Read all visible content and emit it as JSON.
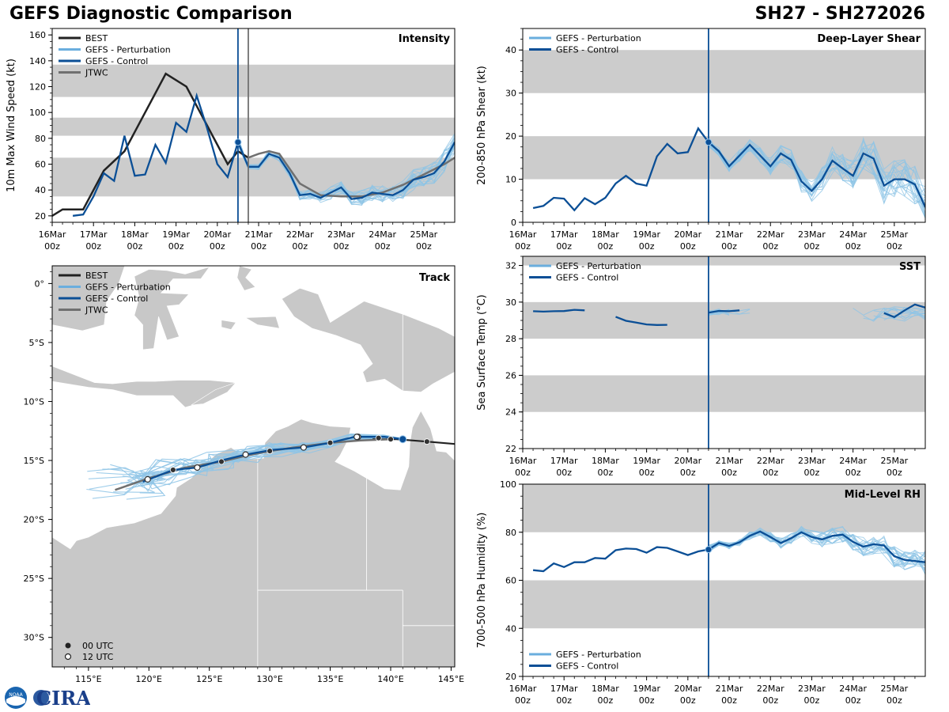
{
  "header": {
    "title": "GEFS Diagnostic Comparison",
    "storm_id": "SH27 - SH272026"
  },
  "colors": {
    "best": "#222222",
    "perturbation": "#8ec4e6",
    "perturbation_legend": "#6aaede",
    "control": "#0b4f96",
    "jtwc": "#707070",
    "band": "#cccccc",
    "land": "#c8c8c8"
  },
  "time_ticks": [
    "16Mar 00z",
    "17Mar 00z",
    "18Mar 00z",
    "19Mar 00z",
    "20Mar 00z",
    "21Mar 00z",
    "22Mar 00z",
    "23Mar 00z",
    "24Mar 00z",
    "25Mar 00z"
  ],
  "legend": {
    "best": "BEST",
    "perturbation": "GEFS - Perturbation",
    "control": "GEFS - Control",
    "jtwc": "JTWC",
    "utc00": "00 UTC",
    "utc12": "12 UTC"
  },
  "logo": {
    "text": "CIRA",
    "noaa": "NOAA"
  },
  "chart_data": [
    {
      "id": "intensity",
      "type": "line",
      "title": "Intensity",
      "ylabel": "10m Max Wind Speed (kt)",
      "xlim": [
        0,
        9.75
      ],
      "ylim": [
        15,
        165
      ],
      "yticks": [
        20,
        40,
        60,
        80,
        100,
        120,
        140,
        160
      ],
      "bands": [
        [
          35,
          65
        ],
        [
          82,
          96
        ],
        [
          112,
          137
        ]
      ],
      "init_time": 4.5,
      "jtwc_time": 4.75,
      "best": {
        "x": [
          0,
          0.25,
          0.75,
          1.25,
          1.75,
          2.25,
          2.75,
          3.25,
          3.75,
          4.25,
          4.5,
          4.75
        ],
        "y": [
          20,
          25,
          25,
          55,
          70,
          100,
          130,
          120,
          90,
          60,
          70,
          65
        ]
      },
      "control_hist": {
        "x": [
          0.5,
          0.75,
          1.0,
          1.25,
          1.5,
          1.75,
          2.0,
          2.25,
          2.5,
          2.75,
          3.0,
          3.25,
          3.5,
          3.75,
          4.0,
          4.25,
          4.5
        ],
        "y": [
          20,
          21,
          35,
          53,
          47,
          82,
          51,
          52,
          75,
          61,
          92,
          85,
          113,
          88,
          60,
          50,
          77
        ]
      },
      "control_fcst": {
        "x": [
          4.5,
          4.75,
          5.0,
          5.25,
          5.5,
          5.75,
          6.0,
          6.25,
          6.5,
          6.75,
          7.0,
          7.25,
          7.5,
          7.75,
          8.0,
          8.25,
          8.5,
          8.75,
          9.0,
          9.25,
          9.5,
          9.75
        ],
        "y": [
          77,
          58,
          58,
          68,
          65,
          53,
          36,
          37,
          34,
          38,
          42,
          33,
          34,
          38,
          37,
          36,
          40,
          48,
          50,
          53,
          62,
          77
        ]
      },
      "jtwc": {
        "x": [
          4.75,
          5.0,
          5.25,
          5.5,
          6.0,
          6.5,
          7.0,
          7.5,
          8.0,
          8.5,
          9.0,
          9.5,
          9.75
        ],
        "y": [
          65,
          68,
          70,
          68,
          45,
          36,
          35,
          35,
          38,
          44,
          52,
          60,
          65
        ]
      }
    },
    {
      "id": "shear",
      "type": "line",
      "title": "Deep-Layer Shear",
      "ylabel": "200-850 hPa Shear (kt)",
      "xlim": [
        0,
        9.75
      ],
      "ylim": [
        0,
        45
      ],
      "yticks": [
        0,
        10,
        20,
        30,
        40
      ],
      "bands": [
        [
          10,
          20
        ],
        [
          30,
          40
        ]
      ],
      "init_time": 4.5,
      "control_hist": {
        "x": [
          0.25,
          0.5,
          0.75,
          1.0,
          1.25,
          1.5,
          1.75,
          2.0,
          2.25,
          2.5,
          2.75,
          3.0,
          3.25,
          3.5,
          3.75,
          4.0,
          4.25,
          4.5
        ],
        "y": [
          3.3,
          3.8,
          5.7,
          5.5,
          2.8,
          5.6,
          4.2,
          5.7,
          9.0,
          10.8,
          9.0,
          8.5,
          15.3,
          18.2,
          16.0,
          16.3,
          21.8,
          18.6
        ]
      },
      "control_fcst": {
        "x": [
          4.5,
          4.75,
          5.0,
          5.25,
          5.5,
          5.75,
          6.0,
          6.25,
          6.5,
          6.75,
          7.0,
          7.25,
          7.5,
          7.75,
          8.0,
          8.25,
          8.5,
          8.75,
          9.0,
          9.25,
          9.5,
          9.75
        ],
        "y": [
          18.6,
          16.5,
          13.0,
          15.5,
          18.0,
          15.5,
          13.0,
          16.0,
          14.5,
          9.5,
          7.3,
          10.0,
          14.3,
          12.5,
          10.8,
          16.0,
          14.8,
          8.5,
          10.0,
          10.0,
          8.8,
          3.5
        ]
      }
    },
    {
      "id": "sst",
      "type": "line",
      "title": "SST",
      "ylabel": "Sea Surface Temp (°C)",
      "xlim": [
        0,
        9.75
      ],
      "ylim": [
        22,
        32.5
      ],
      "yticks": [
        22,
        24,
        26,
        28,
        30,
        32
      ],
      "bands": [
        [
          24,
          26
        ],
        [
          28,
          30
        ],
        [
          32,
          33
        ]
      ],
      "init_time": 4.5,
      "control_segments": [
        {
          "x": [
            0.25,
            0.5,
            0.75,
            1.0,
            1.25,
            1.5
          ],
          "y": [
            29.5,
            29.48,
            29.5,
            29.51,
            29.58,
            29.55
          ]
        },
        {
          "x": [
            2.25,
            2.5,
            2.75,
            3.0,
            3.25,
            3.5
          ],
          "y": [
            29.2,
            28.98,
            28.88,
            28.78,
            28.75,
            28.76
          ]
        },
        {
          "x": [
            4.5,
            4.75,
            5.0,
            5.25
          ],
          "y": [
            29.42,
            29.52,
            29.5,
            29.55
          ]
        },
        {
          "x": [
            8.75,
            9.0,
            9.25,
            9.5,
            9.75
          ],
          "y": [
            29.4,
            29.18,
            29.55,
            29.87,
            29.7
          ]
        }
      ]
    },
    {
      "id": "rh",
      "type": "line",
      "title": "Mid-Level RH",
      "ylabel": "700-500 hPa Humidity (%)",
      "xlim": [
        0,
        9.75
      ],
      "ylim": [
        20,
        100
      ],
      "yticks": [
        20,
        40,
        60,
        80,
        100
      ],
      "bands": [
        [
          40,
          60
        ],
        [
          80,
          100
        ]
      ],
      "init_time": 4.5,
      "control_hist": {
        "x": [
          0.25,
          0.5,
          0.75,
          1.0,
          1.25,
          1.5,
          1.75,
          2.0,
          2.25,
          2.5,
          2.75,
          3.0,
          3.25,
          3.5,
          3.75,
          4.0,
          4.25,
          4.5
        ],
        "y": [
          64.2,
          63.8,
          67.0,
          65.5,
          67.5,
          67.5,
          69.3,
          69.0,
          72.5,
          73.2,
          73.0,
          71.5,
          73.8,
          73.5,
          72.0,
          70.5,
          72.0,
          72.8
        ]
      },
      "control_fcst": {
        "x": [
          4.5,
          4.75,
          5.0,
          5.25,
          5.5,
          5.75,
          6.0,
          6.25,
          6.5,
          6.75,
          7.0,
          7.25,
          7.5,
          7.75,
          8.0,
          8.25,
          8.5,
          8.75,
          9.0,
          9.25,
          9.5,
          9.75
        ],
        "y": [
          72.8,
          75.5,
          74.3,
          75.8,
          78.5,
          80.3,
          78.0,
          75.5,
          77.5,
          80.0,
          78.0,
          77.0,
          78.5,
          79.0,
          76.0,
          74.0,
          75.0,
          74.5,
          70.0,
          68.5,
          68.0,
          67.5
        ]
      }
    },
    {
      "id": "track",
      "type": "map",
      "title": "Track",
      "lon_range": [
        112,
        145.3
      ],
      "lat_range": [
        -32.5,
        1.5
      ],
      "xticks": [
        "115°E",
        "120°E",
        "125°E",
        "130°E",
        "135°E",
        "140°E",
        "145°E"
      ],
      "yticks": [
        "0°",
        "5°S",
        "10°S",
        "15°S",
        "20°S",
        "25°S",
        "30°S"
      ],
      "best": {
        "lon": [
          138.5,
          140.5,
          143.0,
          145.3
        ],
        "lat": [
          -13.2,
          -13.2,
          -13.4,
          -13.6
        ]
      },
      "best_points_00": [
        [
          139.0,
          -13.1
        ],
        [
          143.0,
          -13.4
        ]
      ],
      "best_points_12": [
        [
          137.2,
          -13.0
        ]
      ],
      "jtwc": {
        "lon": [
          117.2,
          120,
          123,
          126,
          128,
          130,
          132,
          135,
          137.5,
          140
        ],
        "lat": [
          -17.5,
          -16.5,
          -15.6,
          -15.1,
          -14.6,
          -14.2,
          -13.9,
          -13.5,
          -13.3,
          -13.2
        ]
      },
      "control": {
        "lon": [
          141,
          139.5,
          137,
          135,
          132.8,
          130.2,
          128,
          126,
          124,
          122,
          120,
          119.5
        ],
        "lat": [
          -13.2,
          -13.0,
          -13.0,
          -13.5,
          -13.9,
          -14.1,
          -14.5,
          -15.0,
          -15.6,
          -15.8,
          -16.6,
          -16.8
        ]
      },
      "fcst_points_00": [
        [
          126.0,
          -15.1
        ],
        [
          122.0,
          -15.8
        ],
        [
          130.0,
          -14.2
        ],
        [
          135.0,
          -13.5
        ],
        [
          140.0,
          -13.2
        ]
      ],
      "fcst_points_12": [
        [
          137.3,
          -13.0
        ],
        [
          132.8,
          -13.9
        ],
        [
          128.0,
          -14.5
        ],
        [
          124.0,
          -15.6
        ],
        [
          119.9,
          -16.6
        ]
      ]
    }
  ]
}
